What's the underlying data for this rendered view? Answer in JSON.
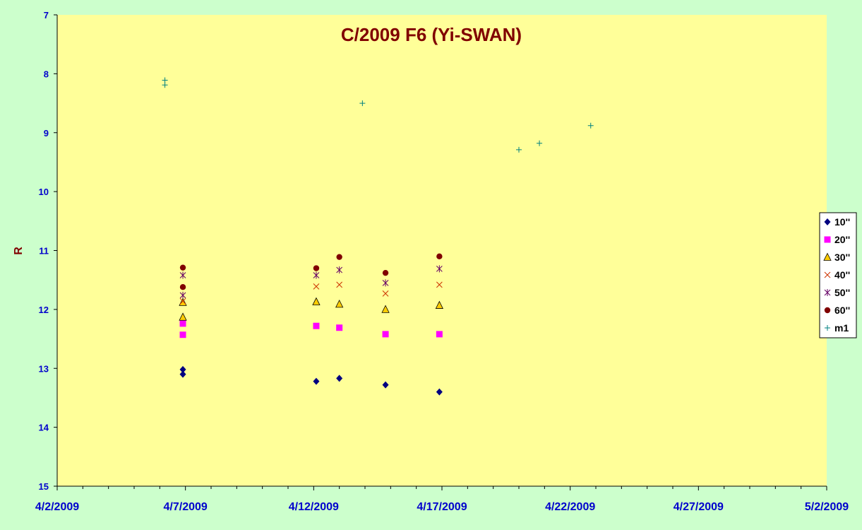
{
  "chart_data": {
    "type": "scatter",
    "title": "C/2009 F6 (Yi-SWAN)",
    "xlabel": "",
    "ylabel": "R",
    "xlim": [
      "2009-04-02",
      "2009-05-02"
    ],
    "ylim": [
      7,
      15
    ],
    "y_inverted": true,
    "y_ticks": [
      7,
      8,
      9,
      10,
      11,
      12,
      13,
      14,
      15
    ],
    "x_ticks": [
      "4/2/2009",
      "4/7/2009",
      "4/12/2009",
      "4/17/2009",
      "4/22/2009",
      "4/27/2009",
      "5/2/2009"
    ],
    "grid": false,
    "legend_position": "right",
    "series": [
      {
        "name": "10''",
        "marker": "diamond",
        "color": "#000080",
        "points": [
          {
            "x": "2009-04-06.9",
            "y": 13.02
          },
          {
            "x": "2009-04-06.9",
            "y": 13.1
          },
          {
            "x": "2009-04-12.1",
            "y": 13.22
          },
          {
            "x": "2009-04-13.0",
            "y": 13.17
          },
          {
            "x": "2009-04-14.8",
            "y": 13.28
          },
          {
            "x": "2009-04-16.9",
            "y": 13.4
          }
        ]
      },
      {
        "name": "20''",
        "marker": "square",
        "color": "#ff00ff",
        "points": [
          {
            "x": "2009-04-06.9",
            "y": 12.24
          },
          {
            "x": "2009-04-06.9",
            "y": 12.43
          },
          {
            "x": "2009-04-12.1",
            "y": 12.28
          },
          {
            "x": "2009-04-13.0",
            "y": 12.31
          },
          {
            "x": "2009-04-14.8",
            "y": 12.42
          },
          {
            "x": "2009-04-16.9",
            "y": 12.42
          }
        ]
      },
      {
        "name": "30''",
        "marker": "triangle",
        "color": "#ffcc00",
        "points": [
          {
            "x": "2009-04-06.9",
            "y": 11.88
          },
          {
            "x": "2009-04-06.9",
            "y": 12.13
          },
          {
            "x": "2009-04-12.1",
            "y": 11.87
          },
          {
            "x": "2009-04-13.0",
            "y": 11.91
          },
          {
            "x": "2009-04-14.8",
            "y": 12.0
          },
          {
            "x": "2009-04-16.9",
            "y": 11.93
          }
        ]
      },
      {
        "name": "40''",
        "marker": "x",
        "color": "#cc3300",
        "points": [
          {
            "x": "2009-04-06.9",
            "y": 11.86
          },
          {
            "x": "2009-04-12.1",
            "y": 11.61
          },
          {
            "x": "2009-04-13.0",
            "y": 11.58
          },
          {
            "x": "2009-04-14.8",
            "y": 11.73
          },
          {
            "x": "2009-04-16.9",
            "y": 11.58
          }
        ]
      },
      {
        "name": "50''",
        "marker": "star",
        "color": "#660066",
        "points": [
          {
            "x": "2009-04-06.9",
            "y": 11.42
          },
          {
            "x": "2009-04-06.9",
            "y": 11.76
          },
          {
            "x": "2009-04-12.1",
            "y": 11.42
          },
          {
            "x": "2009-04-13.0",
            "y": 11.33
          },
          {
            "x": "2009-04-14.8",
            "y": 11.55
          },
          {
            "x": "2009-04-16.9",
            "y": 11.31
          }
        ]
      },
      {
        "name": "60''",
        "marker": "circle",
        "color": "#800000",
        "points": [
          {
            "x": "2009-04-06.9",
            "y": 11.29
          },
          {
            "x": "2009-04-06.9",
            "y": 11.62
          },
          {
            "x": "2009-04-12.1",
            "y": 11.3
          },
          {
            "x": "2009-04-13.0",
            "y": 11.11
          },
          {
            "x": "2009-04-14.8",
            "y": 11.38
          },
          {
            "x": "2009-04-16.9",
            "y": 11.1
          }
        ]
      },
      {
        "name": "m1",
        "marker": "plus",
        "color": "#008080",
        "points": [
          {
            "x": "2009-04-06.2",
            "y": 8.11
          },
          {
            "x": "2009-04-06.2",
            "y": 8.19
          },
          {
            "x": "2009-04-13.9",
            "y": 8.5
          },
          {
            "x": "2009-04-20.0",
            "y": 9.29
          },
          {
            "x": "2009-04-20.8",
            "y": 9.18
          },
          {
            "x": "2009-04-22.8",
            "y": 8.88
          }
        ]
      }
    ]
  }
}
